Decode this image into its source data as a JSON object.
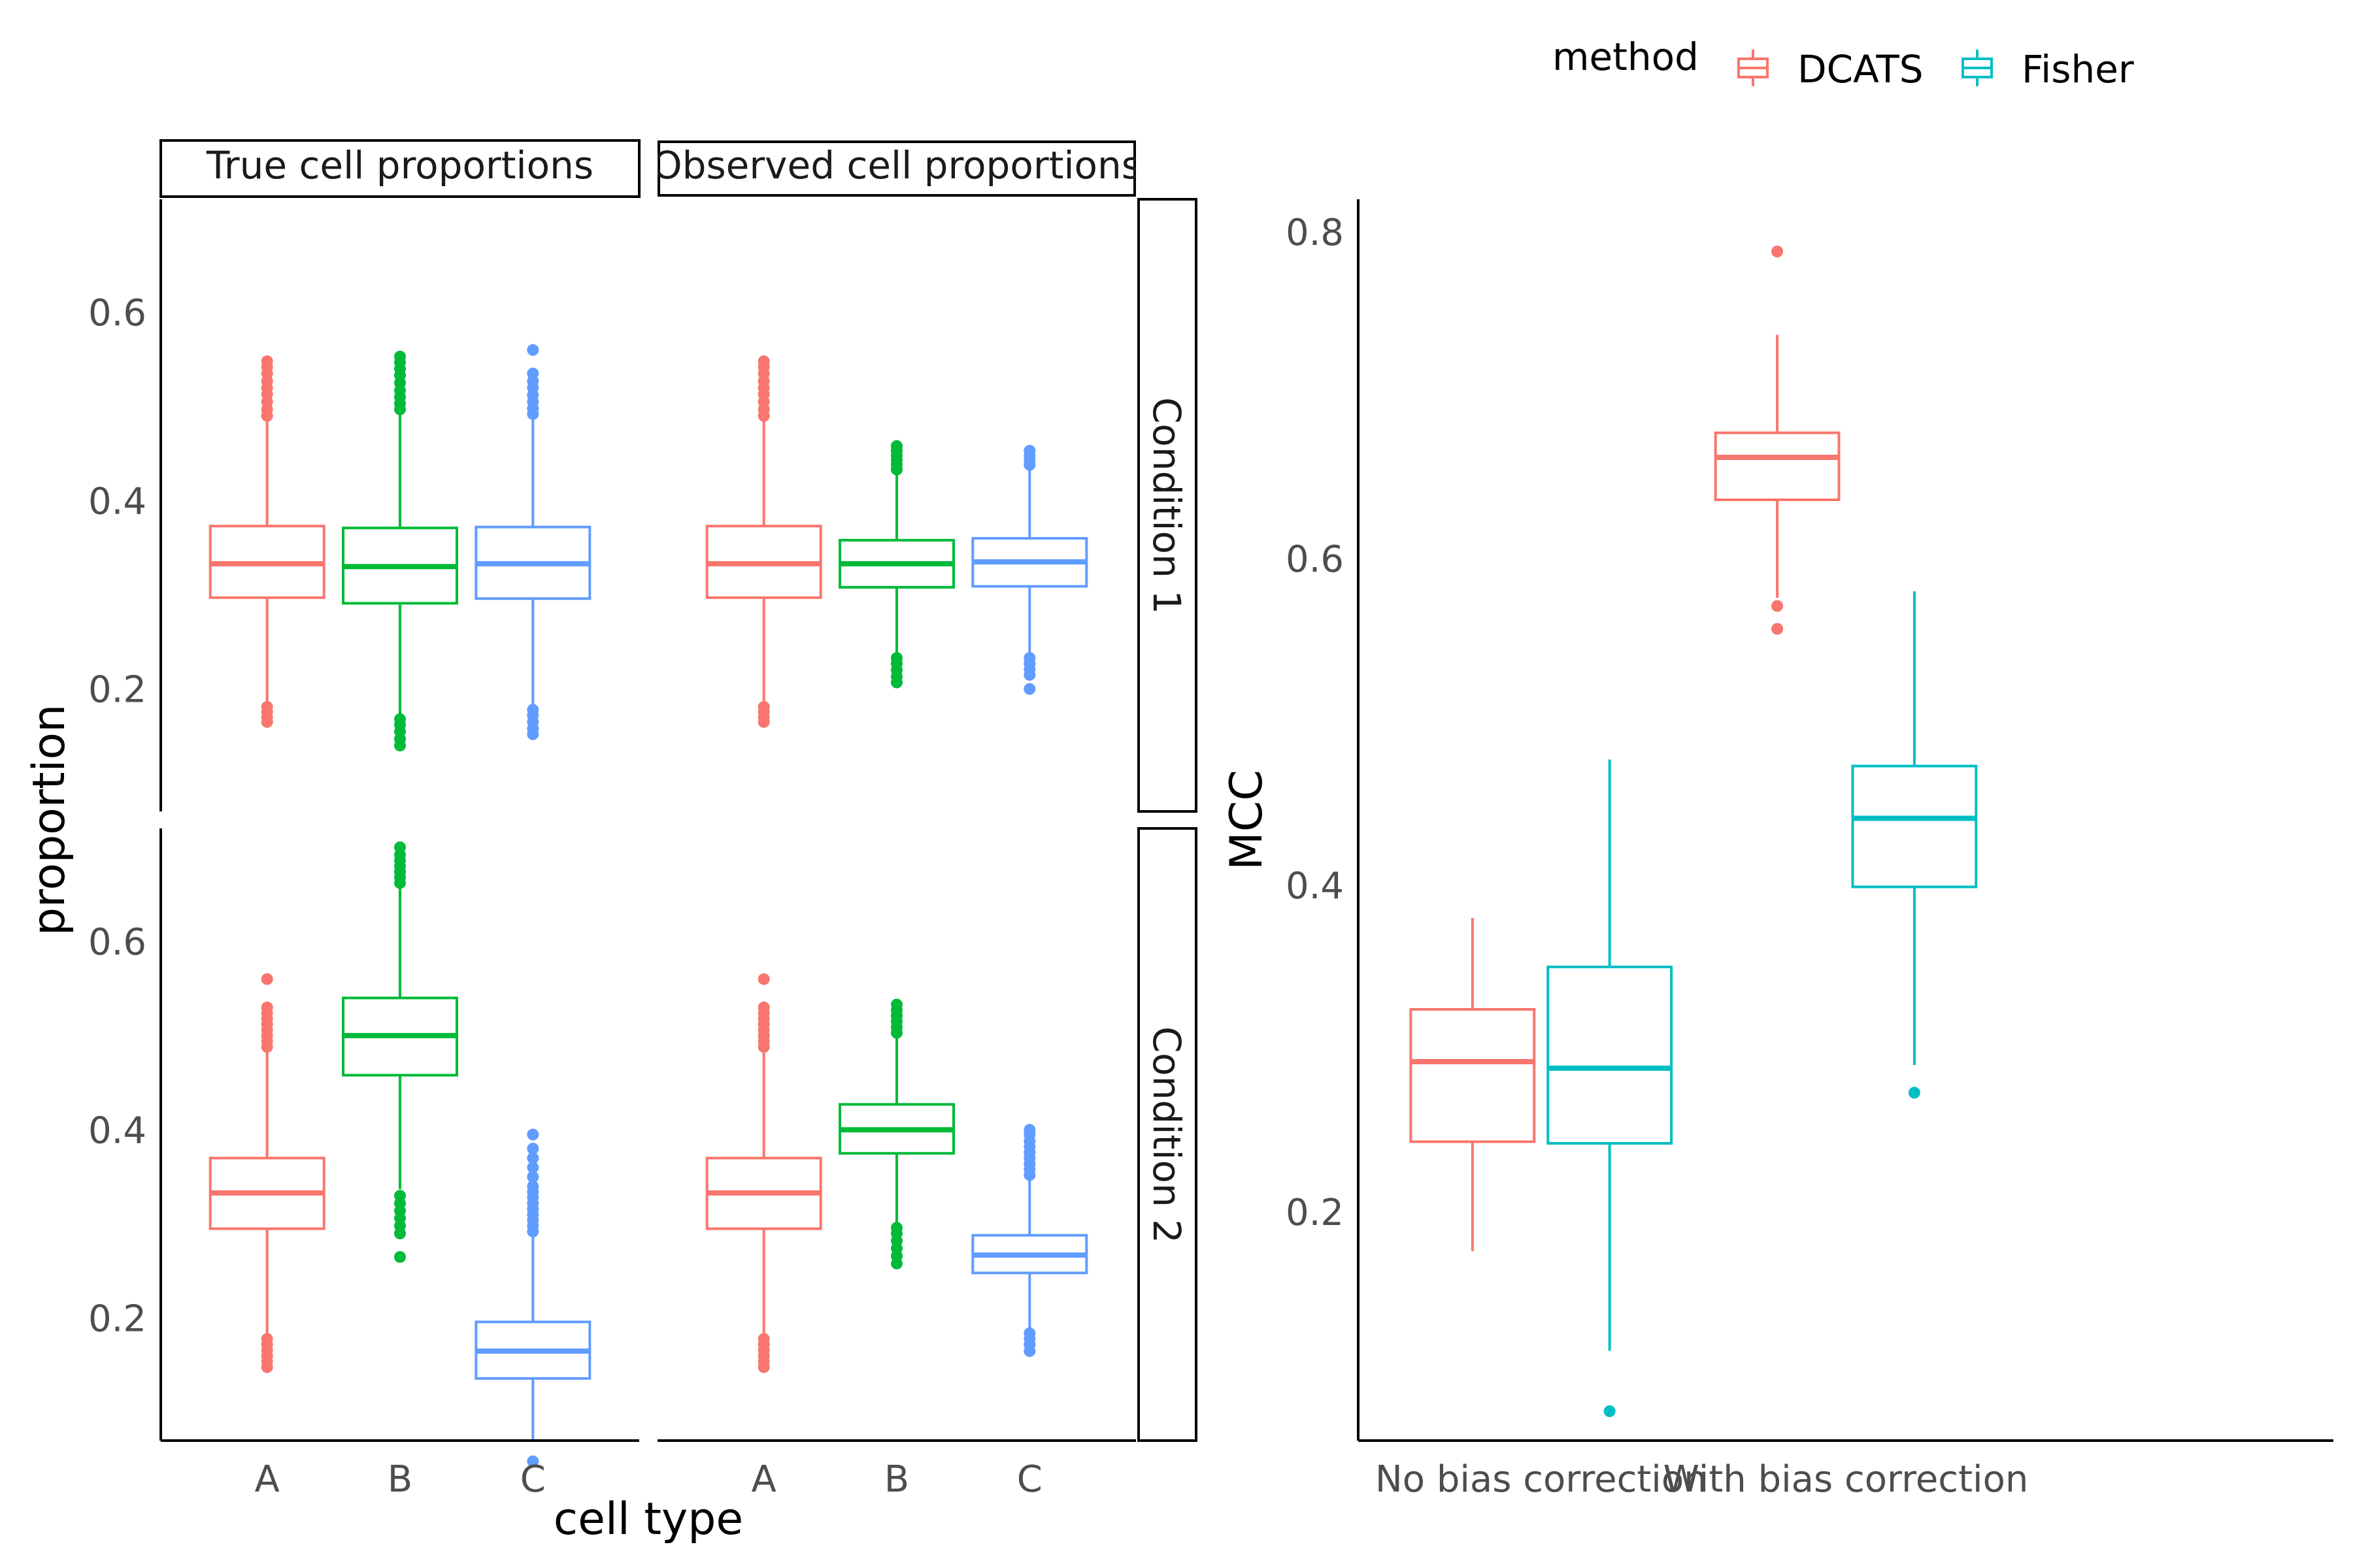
{
  "legend": {
    "title": "method",
    "items": [
      {
        "label": "DCATS",
        "color": "#F8766D"
      },
      {
        "label": "Fisher",
        "color": "#00BFC4"
      }
    ]
  },
  "chart_data": [
    {
      "type": "box",
      "facets_x": [
        "True cell proportions",
        "Observed cell proportions"
      ],
      "facets_y": [
        "Condition 1",
        "Condition 2"
      ],
      "categories": [
        "A",
        "B",
        "C"
      ],
      "xlabel": "cell type",
      "ylabel": "proportion",
      "y_ticks": [
        0.2,
        0.4,
        0.6
      ],
      "ylim": [
        0.07,
        0.72
      ],
      "colors": {
        "A": "#F8766D",
        "B": "#00BA38",
        "C": "#619CFF"
      },
      "panels": [
        {
          "facet_x": "True cell proportions",
          "facet_y": "Condition 1",
          "boxes": [
            {
              "category": "A",
              "q1": 0.297,
              "median": 0.333,
              "q3": 0.373,
              "whisker_low": 0.187,
              "whisker_high": 0.487,
              "outliers": [
                0.165,
                0.17,
                0.176,
                0.181,
                0.49,
                0.497,
                0.505,
                0.513,
                0.52,
                0.527,
                0.535,
                0.542,
                0.548
              ]
            },
            {
              "category": "B",
              "q1": 0.291,
              "median": 0.33,
              "q3": 0.371,
              "whisker_low": 0.172,
              "whisker_high": 0.495,
              "outliers": [
                0.14,
                0.147,
                0.155,
                0.162,
                0.168,
                0.497,
                0.503,
                0.51,
                0.517,
                0.525,
                0.533,
                0.54,
                0.547,
                0.553
              ]
            },
            {
              "category": "C",
              "q1": 0.296,
              "median": 0.333,
              "q3": 0.372,
              "whisker_low": 0.182,
              "whisker_high": 0.49,
              "outliers": [
                0.152,
                0.158,
                0.165,
                0.172,
                0.178,
                0.492,
                0.498,
                0.505,
                0.512,
                0.52,
                0.527,
                0.535,
                0.56
              ]
            }
          ]
        },
        {
          "facet_x": "Observed cell proportions",
          "facet_y": "Condition 1",
          "boxes": [
            {
              "category": "A",
              "q1": 0.297,
              "median": 0.333,
              "q3": 0.373,
              "whisker_low": 0.187,
              "whisker_high": 0.487,
              "outliers": [
                0.165,
                0.17,
                0.176,
                0.181,
                0.49,
                0.497,
                0.505,
                0.513,
                0.52,
                0.527,
                0.535,
                0.542,
                0.548
              ]
            },
            {
              "category": "B",
              "q1": 0.308,
              "median": 0.333,
              "q3": 0.358,
              "whisker_low": 0.235,
              "whisker_high": 0.43,
              "outliers": [
                0.207,
                0.213,
                0.22,
                0.227,
                0.233,
                0.433,
                0.438,
                0.443,
                0.448,
                0.453,
                0.458
              ]
            },
            {
              "category": "C",
              "q1": 0.309,
              "median": 0.335,
              "q3": 0.36,
              "whisker_low": 0.235,
              "whisker_high": 0.435,
              "outliers": [
                0.2,
                0.215,
                0.221,
                0.227,
                0.233,
                0.438,
                0.443,
                0.448,
                0.453
              ]
            }
          ]
        },
        {
          "facet_x": "True cell proportions",
          "facet_y": "Condition 2",
          "boxes": [
            {
              "category": "A",
              "q1": 0.295,
              "median": 0.333,
              "q3": 0.37,
              "whisker_low": 0.18,
              "whisker_high": 0.485,
              "outliers": [
                0.148,
                0.154,
                0.16,
                0.166,
                0.172,
                0.178,
                0.488,
                0.494,
                0.5,
                0.506,
                0.512,
                0.518,
                0.524,
                0.53,
                0.56
              ]
            },
            {
              "category": "B",
              "q1": 0.458,
              "median": 0.5,
              "q3": 0.54,
              "whisker_low": 0.337,
              "whisker_high": 0.66,
              "outliers": [
                0.265,
                0.29,
                0.298,
                0.306,
                0.314,
                0.322,
                0.33,
                0.662,
                0.668,
                0.674,
                0.68,
                0.686,
                0.692,
                0.7
              ]
            },
            {
              "category": "C",
              "q1": 0.136,
              "median": 0.165,
              "q3": 0.196,
              "whisker_low": 0.07,
              "whisker_high": 0.29,
              "outliers": [
                0.048,
                0.292,
                0.298,
                0.304,
                0.31,
                0.316,
                0.322,
                0.328,
                0.334,
                0.34,
                0.35,
                0.36,
                0.37,
                0.38,
                0.395
              ]
            }
          ]
        },
        {
          "facet_x": "Observed cell proportions",
          "facet_y": "Condition 2",
          "boxes": [
            {
              "category": "A",
              "q1": 0.295,
              "median": 0.333,
              "q3": 0.37,
              "whisker_low": 0.18,
              "whisker_high": 0.485,
              "outliers": [
                0.148,
                0.154,
                0.16,
                0.166,
                0.172,
                0.178,
                0.488,
                0.494,
                0.5,
                0.506,
                0.512,
                0.518,
                0.524,
                0.53,
                0.56
              ]
            },
            {
              "category": "B",
              "q1": 0.375,
              "median": 0.4,
              "q3": 0.427,
              "whisker_low": 0.3,
              "whisker_high": 0.5,
              "outliers": [
                0.258,
                0.266,
                0.274,
                0.282,
                0.29,
                0.296,
                0.503,
                0.509,
                0.515,
                0.521,
                0.527,
                0.533
              ]
            },
            {
              "category": "C",
              "q1": 0.248,
              "median": 0.267,
              "q3": 0.288,
              "whisker_low": 0.19,
              "whisker_high": 0.35,
              "outliers": [
                0.165,
                0.172,
                0.178,
                0.184,
                0.352,
                0.358,
                0.364,
                0.37,
                0.376,
                0.382,
                0.388,
                0.395,
                0.4
              ]
            }
          ]
        }
      ]
    },
    {
      "type": "box",
      "categories": [
        "No bias correction",
        "With bias correction"
      ],
      "xlabel": "",
      "ylabel": "MCC",
      "y_ticks": [
        0.2,
        0.4,
        0.6,
        0.8
      ],
      "ylim": [
        0.06,
        0.82
      ],
      "series": [
        {
          "name": "DCATS",
          "color": "#F8766D",
          "boxes": [
            {
              "category": "No bias correction",
              "q1": 0.243,
              "median": 0.292,
              "q3": 0.324,
              "whisker_low": 0.176,
              "whisker_high": 0.38,
              "outliers": []
            },
            {
              "category": "With bias correction",
              "q1": 0.636,
              "median": 0.662,
              "q3": 0.677,
              "whisker_low": 0.576,
              "whisker_high": 0.737,
              "outliers": [
                0.557,
                0.571,
                0.788
              ]
            }
          ]
        },
        {
          "name": "Fisher",
          "color": "#00BFC4",
          "boxes": [
            {
              "category": "No bias correction",
              "q1": 0.242,
              "median": 0.288,
              "q3": 0.35,
              "whisker_low": 0.115,
              "whisker_high": 0.477,
              "outliers": [
                0.078
              ]
            },
            {
              "category": "With bias correction",
              "q1": 0.399,
              "median": 0.441,
              "q3": 0.473,
              "whisker_low": 0.29,
              "whisker_high": 0.58,
              "outliers": [
                0.273
              ]
            }
          ]
        }
      ]
    }
  ]
}
